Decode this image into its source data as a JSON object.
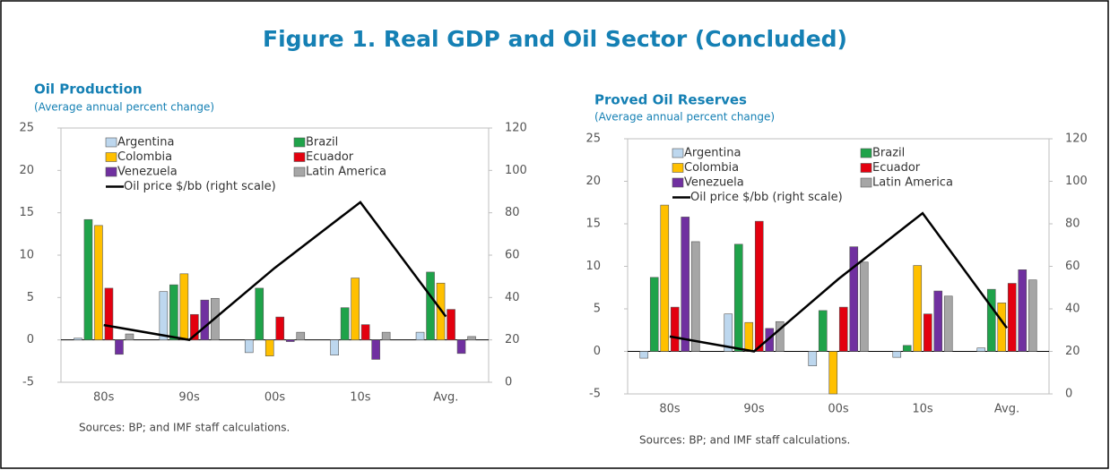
{
  "title": "Figure 1. Real GDP and Oil Sector (Concluded)",
  "chart_data": [
    {
      "type": "bar",
      "title": "Oil Production",
      "subtitle": "(Average annual percent change)",
      "note": "Sources: BP; and IMF staff calculations.",
      "categories": [
        "80s",
        "90s",
        "00s",
        "10s",
        "Avg."
      ],
      "ylim": [
        -5,
        25
      ],
      "yticks": [
        -5,
        0,
        5,
        10,
        15,
        20,
        25
      ],
      "y2lim": [
        0,
        120
      ],
      "y2ticks": [
        0,
        20,
        40,
        60,
        80,
        100,
        120
      ],
      "series": [
        {
          "name": "Argentina",
          "color": "#bdd7ee",
          "values": [
            0.2,
            5.7,
            -1.5,
            -1.8,
            0.9
          ]
        },
        {
          "name": "Brazil",
          "color": "#1fa34a",
          "values": [
            14.2,
            6.5,
            6.1,
            3.8,
            8.0
          ]
        },
        {
          "name": "Colombia",
          "color": "#ffc000",
          "values": [
            13.5,
            7.8,
            -1.9,
            7.3,
            6.7
          ]
        },
        {
          "name": "Ecuador",
          "color": "#e3000f",
          "values": [
            6.1,
            3.0,
            2.7,
            1.8,
            3.6
          ]
        },
        {
          "name": "Venezuela",
          "color": "#7030a0",
          "values": [
            -1.7,
            4.7,
            -0.2,
            -2.3,
            -1.6
          ]
        },
        {
          "name": "Latin America",
          "color": "#a6a6a6",
          "values": [
            0.7,
            4.9,
            0.9,
            0.9,
            0.4
          ]
        },
        {
          "name": "Oil price $/bb (right scale)",
          "color": "#000000",
          "type": "line",
          "axis": "y2",
          "values": [
            27,
            20,
            54,
            85,
            31
          ]
        }
      ]
    },
    {
      "type": "bar",
      "title": "Proved Oil Reserves",
      "subtitle": "(Average annual percent change)",
      "note": "Sources: BP; and IMF staff calculations.",
      "categories": [
        "80s",
        "90s",
        "00s",
        "10s",
        "Avg."
      ],
      "ylim": [
        -5,
        25
      ],
      "yticks": [
        -5,
        0,
        5,
        10,
        15,
        20,
        25
      ],
      "y2lim": [
        0,
        120
      ],
      "y2ticks": [
        0,
        20,
        40,
        60,
        80,
        100,
        120
      ],
      "series": [
        {
          "name": "Argentina",
          "color": "#bdd7ee",
          "values": [
            -0.8,
            4.4,
            -1.7,
            -0.7,
            0.4
          ]
        },
        {
          "name": "Brazil",
          "color": "#1fa34a",
          "values": [
            8.7,
            12.6,
            4.8,
            0.7,
            7.3
          ]
        },
        {
          "name": "Colombia",
          "color": "#ffc000",
          "values": [
            17.2,
            3.4,
            -5.0,
            10.1,
            5.7
          ]
        },
        {
          "name": "Ecuador",
          "color": "#e3000f",
          "values": [
            5.2,
            15.3,
            5.2,
            4.4,
            8.0
          ]
        },
        {
          "name": "Venezuela",
          "color": "#7030a0",
          "values": [
            15.8,
            2.7,
            12.3,
            7.1,
            9.6
          ]
        },
        {
          "name": "Latin America",
          "color": "#a6a6a6",
          "values": [
            12.9,
            3.5,
            10.5,
            6.5,
            8.4
          ]
        },
        {
          "name": "Oil price $/bb (right scale)",
          "color": "#000000",
          "type": "line",
          "axis": "y2",
          "values": [
            27,
            20,
            54,
            85,
            31
          ]
        }
      ]
    }
  ]
}
